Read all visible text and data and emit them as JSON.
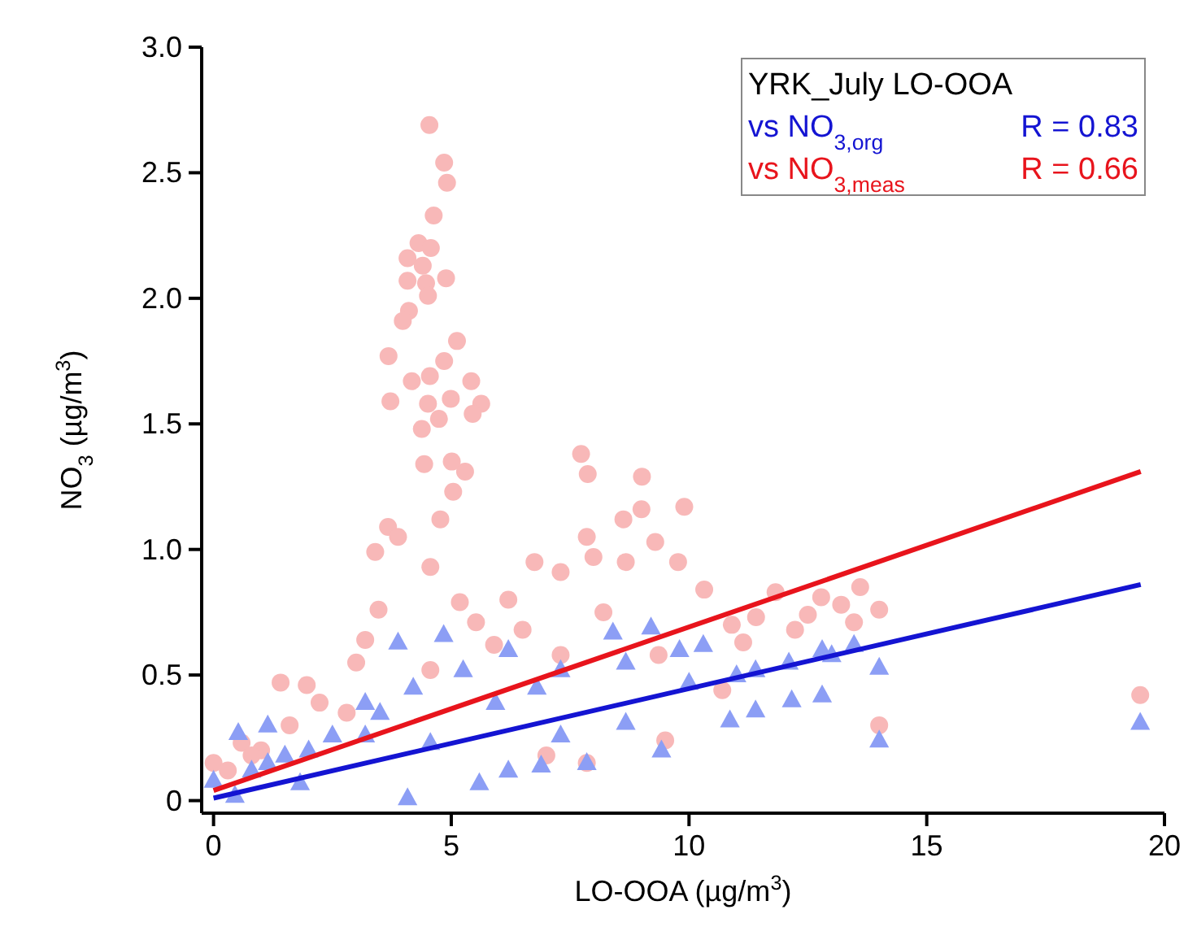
{
  "chart_data": {
    "type": "scatter",
    "xlabel": "LO-OOA (µg/m$^{3}$)",
    "ylabel": "NO$_{3}$ (µg/m$^{3}$)",
    "legend_title": "YRK_July LO-OOA",
    "legend": "top right",
    "grid": false,
    "xlim": [
      -0.25,
      20
    ],
    "xticks": [
      0,
      5,
      10,
      15,
      20
    ],
    "ylim": [
      -0.05,
      3.0
    ],
    "yticks": [
      0,
      0.5,
      {
        "value": 1,
        "label": "1.0"
      },
      1.5,
      {
        "value": 2,
        "label": "2.0"
      },
      2.5,
      {
        "value": 3,
        "label": "3.0"
      }
    ],
    "annotations": [
      "R = 0.83",
      "R = 0.66"
    ],
    "series": [
      {
        "marker": "circle",
        "color": "#f8b8b8",
        "x": [
          4.54,
          4.85,
          4.91,
          4.63,
          4.31,
          4.57,
          4.08,
          4.4,
          4.08,
          4.47,
          4.89,
          4.51,
          4.11,
          3.98,
          5.12,
          3.68,
          4.85,
          4.55,
          5.42,
          4.17,
          3.72,
          4.51,
          5.63,
          4.99,
          5.45,
          4.74,
          4.38,
          4.43,
          5.01,
          5.29,
          7.73,
          7.87,
          9.01,
          3.67,
          3.4,
          3.88,
          4.77,
          5.04,
          4.56,
          5.18,
          3.47,
          1.41,
          1.96,
          3.19,
          6.75,
          7.3,
          7.85,
          8.62,
          9.0,
          9.29,
          9.9,
          9.77,
          10.32,
          11.82,
          12.78,
          13.6,
          14.0,
          19.49,
          14.0,
          6.2,
          5.52,
          8.67,
          7.99,
          11.41,
          13.47,
          11.14,
          12.23,
          0.0,
          0.59,
          2.23,
          4.56,
          7.3,
          9.36,
          10.7,
          7.85,
          9.5,
          7.0,
          0.3,
          1.0,
          2.8,
          5.9,
          8.2,
          10.9,
          12.5,
          13.2,
          6.5,
          3.0,
          1.6,
          0.8
        ],
        "values": [
          2.69,
          2.54,
          2.46,
          2.33,
          2.22,
          2.2,
          2.16,
          2.13,
          2.07,
          2.06,
          2.08,
          2.01,
          1.95,
          1.91,
          1.83,
          1.77,
          1.75,
          1.69,
          1.67,
          1.67,
          1.59,
          1.58,
          1.58,
          1.6,
          1.54,
          1.52,
          1.48,
          1.34,
          1.35,
          1.31,
          1.38,
          1.3,
          1.29,
          1.09,
          0.99,
          1.05,
          1.12,
          1.23,
          0.93,
          0.79,
          0.76,
          0.47,
          0.46,
          0.64,
          0.95,
          0.91,
          1.05,
          1.12,
          1.16,
          1.03,
          1.17,
          0.95,
          0.84,
          0.83,
          0.81,
          0.85,
          0.76,
          0.42,
          0.3,
          0.8,
          0.71,
          0.95,
          0.97,
          0.73,
          0.71,
          0.63,
          0.68,
          0.15,
          0.23,
          0.39,
          0.52,
          0.58,
          0.58,
          0.44,
          0.15,
          0.24,
          0.18,
          0.12,
          0.2,
          0.35,
          0.62,
          0.75,
          0.7,
          0.74,
          0.78,
          0.68,
          0.55,
          0.3,
          0.18
        ]
      },
      {
        "marker": "triangle",
        "color": "#8c9ef5",
        "x": [
          0.52,
          1.14,
          4.84,
          3.88,
          6.2,
          8.4,
          9.2,
          10.3,
          12.8,
          13.47,
          14.0,
          19.49,
          14.0,
          12.16,
          10.86,
          9.42,
          7.85,
          6.89,
          5.59,
          4.08,
          6.2,
          3.19,
          1.82,
          0.45,
          0.0,
          2.5,
          5.25,
          7.3,
          8.67,
          11.4,
          12.1,
          10.0,
          8.67,
          7.3,
          4.56,
          5.93,
          3.19,
          1.14,
          12.8,
          11.4,
          0.8,
          1.5,
          2.0,
          3.5,
          4.2,
          6.8,
          9.8,
          11.0,
          13.0
        ],
        "values": [
          0.27,
          0.3,
          0.66,
          0.63,
          0.6,
          0.67,
          0.69,
          0.62,
          0.6,
          0.62,
          0.53,
          0.31,
          0.24,
          0.4,
          0.32,
          0.2,
          0.15,
          0.14,
          0.07,
          0.01,
          0.12,
          0.26,
          0.07,
          0.02,
          0.08,
          0.26,
          0.52,
          0.52,
          0.55,
          0.52,
          0.55,
          0.47,
          0.31,
          0.26,
          0.23,
          0.39,
          0.39,
          0.15,
          0.42,
          0.36,
          0.12,
          0.18,
          0.2,
          0.35,
          0.45,
          0.45,
          0.6,
          0.5,
          0.58
        ]
      },
      {
        "type": "line",
        "name": "vs NO$_{3,org}$",
        "color": "#1414d2",
        "line_style": "solid",
        "marker": "none",
        "x": [
          0,
          19.5
        ],
        "values": [
          0.01,
          0.86
        ]
      },
      {
        "type": "line",
        "name": "vs NO$_{3,meas}$",
        "color": "#e8141c",
        "line_style": "solid",
        "marker": "none",
        "x": [
          0,
          19.5
        ],
        "values": [
          0.04,
          1.31
        ]
      }
    ]
  }
}
